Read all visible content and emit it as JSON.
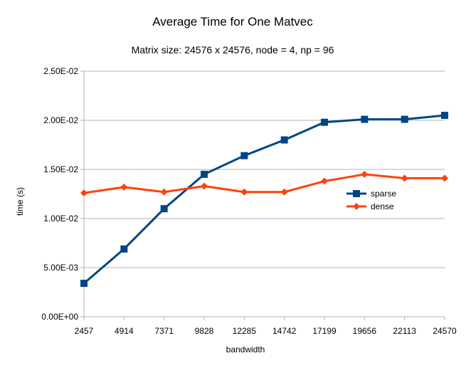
{
  "chart_data": {
    "type": "line",
    "title": "Average Time for One Matvec",
    "subtitle": "Matrix size: 24576 x 24576, node = 4, np = 96",
    "xlabel": "bandwidth",
    "ylabel": "time (s)",
    "categories": [
      "2457",
      "4914",
      "7371",
      "9828",
      "12285",
      "14742",
      "17199",
      "19656",
      "22113",
      "24570"
    ],
    "yticks": [
      "0.00E+00",
      "5.00E-03",
      "1.00E-02",
      "1.50E-02",
      "2.00E-02",
      "2.50E-02"
    ],
    "ylim": [
      0,
      0.025
    ],
    "grid": true,
    "legend_position": "right",
    "series": [
      {
        "name": "sparse",
        "color": "#004586",
        "marker": "square",
        "values": [
          0.0034,
          0.0069,
          0.011,
          0.0145,
          0.0164,
          0.018,
          0.0198,
          0.0201,
          0.0201,
          0.0205
        ]
      },
      {
        "name": "dense",
        "color": "#ff420e",
        "marker": "diamond",
        "values": [
          0.0126,
          0.0132,
          0.0127,
          0.0133,
          0.0127,
          0.0127,
          0.0138,
          0.0145,
          0.0141,
          0.0141
        ]
      }
    ]
  }
}
